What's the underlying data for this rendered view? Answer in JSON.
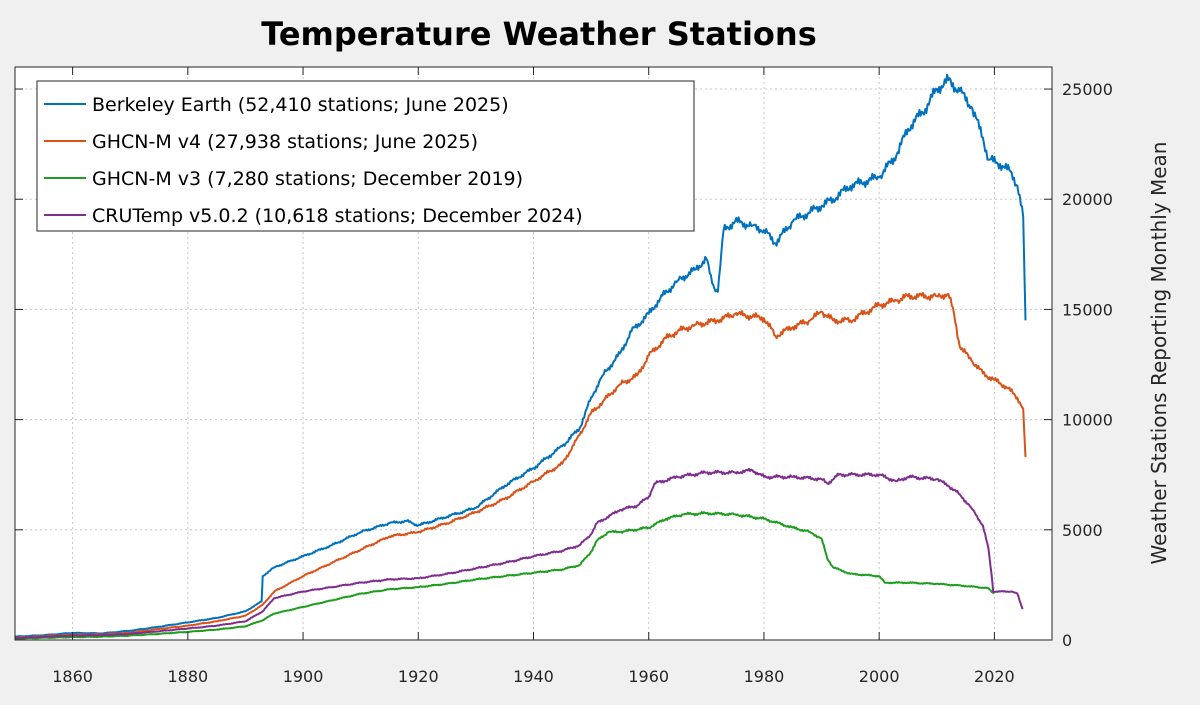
{
  "chart_data": {
    "type": "line",
    "title": "Temperature Weather Stations",
    "xlabel": "",
    "ylabel": "Weather Stations Reporting Monthly Mean",
    "xlim": [
      1850,
      2030
    ],
    "ylim": [
      0,
      26000
    ],
    "x_ticks": [
      1860,
      1880,
      1900,
      1920,
      1940,
      1960,
      1980,
      2000,
      2020
    ],
    "y_ticks": [
      0,
      5000,
      10000,
      15000,
      20000,
      25000
    ],
    "y_axis_side": "right",
    "grid": true,
    "legend_position": "top-left",
    "series": [
      {
        "name": "Berkeley Earth (52,410 stations; June 2025)",
        "color": "#0072BD",
        "points": [
          [
            1850,
            150
          ],
          [
            1855,
            220
          ],
          [
            1860,
            320
          ],
          [
            1865,
            300
          ],
          [
            1870,
            420
          ],
          [
            1875,
            600
          ],
          [
            1880,
            800
          ],
          [
            1885,
            1000
          ],
          [
            1890,
            1300
          ],
          [
            1892.8,
            1750
          ],
          [
            1893,
            2900
          ],
          [
            1895,
            3300
          ],
          [
            1900,
            3800
          ],
          [
            1905,
            4300
          ],
          [
            1910,
            4900
          ],
          [
            1915,
            5300
          ],
          [
            1918,
            5400
          ],
          [
            1920,
            5200
          ],
          [
            1925,
            5600
          ],
          [
            1930,
            6000
          ],
          [
            1935,
            7000
          ],
          [
            1940,
            7800
          ],
          [
            1945,
            8800
          ],
          [
            1948,
            9600
          ],
          [
            1950,
            11000
          ],
          [
            1952,
            12000
          ],
          [
            1955,
            13000
          ],
          [
            1957,
            14000
          ],
          [
            1960,
            14800
          ],
          [
            1962,
            15500
          ],
          [
            1965,
            16300
          ],
          [
            1968,
            16800
          ],
          [
            1970,
            17300
          ],
          [
            1971,
            16200
          ],
          [
            1972,
            15800
          ],
          [
            1973,
            18600
          ],
          [
            1975,
            19000
          ],
          [
            1978,
            18800
          ],
          [
            1980,
            18600
          ],
          [
            1982,
            18000
          ],
          [
            1985,
            19000
          ],
          [
            1990,
            19700
          ],
          [
            1992,
            20000
          ],
          [
            1995,
            20600
          ],
          [
            2000,
            21000
          ],
          [
            2003,
            22000
          ],
          [
            2005,
            23200
          ],
          [
            2008,
            24100
          ],
          [
            2010,
            25000
          ],
          [
            2012,
            25400
          ],
          [
            2014,
            24900
          ],
          [
            2016,
            24200
          ],
          [
            2018,
            22800
          ],
          [
            2019,
            21800
          ],
          [
            2021,
            21600
          ],
          [
            2023,
            21200
          ],
          [
            2024,
            20600
          ],
          [
            2025,
            19200
          ],
          [
            2025.4,
            14500
          ]
        ]
      },
      {
        "name": "GHCN-M v4 (27,938 stations; June 2025)",
        "color": "#D95319",
        "points": [
          [
            1850,
            100
          ],
          [
            1855,
            180
          ],
          [
            1860,
            240
          ],
          [
            1865,
            250
          ],
          [
            1870,
            330
          ],
          [
            1875,
            500
          ],
          [
            1880,
            650
          ],
          [
            1885,
            850
          ],
          [
            1890,
            1100
          ],
          [
            1893,
            1600
          ],
          [
            1895,
            2200
          ],
          [
            1900,
            2900
          ],
          [
            1905,
            3500
          ],
          [
            1910,
            4100
          ],
          [
            1915,
            4700
          ],
          [
            1920,
            4900
          ],
          [
            1925,
            5300
          ],
          [
            1930,
            5800
          ],
          [
            1935,
            6400
          ],
          [
            1940,
            7200
          ],
          [
            1945,
            8000
          ],
          [
            1948,
            9300
          ],
          [
            1950,
            10300
          ],
          [
            1952,
            10800
          ],
          [
            1955,
            11600
          ],
          [
            1958,
            12000
          ],
          [
            1960,
            12900
          ],
          [
            1963,
            13700
          ],
          [
            1965,
            14000
          ],
          [
            1968,
            14300
          ],
          [
            1970,
            14400
          ],
          [
            1972,
            14500
          ],
          [
            1975,
            14800
          ],
          [
            1980,
            14600
          ],
          [
            1982,
            13800
          ],
          [
            1985,
            14200
          ],
          [
            1988,
            14500
          ],
          [
            1990,
            14900
          ],
          [
            1992,
            14500
          ],
          [
            1995,
            14500
          ],
          [
            2000,
            15200
          ],
          [
            2003,
            15400
          ],
          [
            2005,
            15600
          ],
          [
            2010,
            15600
          ],
          [
            2012,
            15700
          ],
          [
            2013,
            14800
          ],
          [
            2014,
            13300
          ],
          [
            2016,
            12700
          ],
          [
            2018,
            12100
          ],
          [
            2020,
            11800
          ],
          [
            2022,
            11500
          ],
          [
            2024,
            11000
          ],
          [
            2025,
            10500
          ],
          [
            2025.4,
            8300
          ]
        ]
      },
      {
        "name": "GHCN-M v3 (7,280 stations; December 2019)",
        "color": "#1E9E1E",
        "points": [
          [
            1850,
            60
          ],
          [
            1855,
            100
          ],
          [
            1860,
            130
          ],
          [
            1865,
            150
          ],
          [
            1870,
            200
          ],
          [
            1875,
            280
          ],
          [
            1880,
            370
          ],
          [
            1885,
            470
          ],
          [
            1890,
            620
          ],
          [
            1893,
            900
          ],
          [
            1895,
            1200
          ],
          [
            1900,
            1500
          ],
          [
            1905,
            1800
          ],
          [
            1910,
            2100
          ],
          [
            1915,
            2300
          ],
          [
            1920,
            2400
          ],
          [
            1925,
            2550
          ],
          [
            1930,
            2750
          ],
          [
            1935,
            2900
          ],
          [
            1940,
            3050
          ],
          [
            1945,
            3200
          ],
          [
            1948,
            3400
          ],
          [
            1950,
            4000
          ],
          [
            1951,
            4500
          ],
          [
            1953,
            4900
          ],
          [
            1955,
            4900
          ],
          [
            1960,
            5100
          ],
          [
            1963,
            5500
          ],
          [
            1966,
            5700
          ],
          [
            1970,
            5750
          ],
          [
            1975,
            5700
          ],
          [
            1980,
            5500
          ],
          [
            1985,
            5100
          ],
          [
            1988,
            4900
          ],
          [
            1990,
            4600
          ],
          [
            1991,
            3700
          ],
          [
            1992,
            3300
          ],
          [
            1995,
            3000
          ],
          [
            2000,
            2900
          ],
          [
            2001,
            2600
          ],
          [
            2005,
            2600
          ],
          [
            2010,
            2550
          ],
          [
            2015,
            2450
          ],
          [
            2019,
            2350
          ],
          [
            2019.9,
            2100
          ]
        ]
      },
      {
        "name": "CRUTemp v5.0.2 (10,618 stations; December 2024)",
        "color": "#7E2F8E",
        "points": [
          [
            1850,
            90
          ],
          [
            1855,
            150
          ],
          [
            1860,
            200
          ],
          [
            1865,
            220
          ],
          [
            1870,
            280
          ],
          [
            1875,
            400
          ],
          [
            1880,
            520
          ],
          [
            1885,
            650
          ],
          [
            1890,
            850
          ],
          [
            1893,
            1300
          ],
          [
            1895,
            1900
          ],
          [
            1900,
            2200
          ],
          [
            1905,
            2400
          ],
          [
            1910,
            2600
          ],
          [
            1915,
            2750
          ],
          [
            1920,
            2800
          ],
          [
            1925,
            3000
          ],
          [
            1930,
            3250
          ],
          [
            1935,
            3500
          ],
          [
            1940,
            3800
          ],
          [
            1945,
            4050
          ],
          [
            1948,
            4300
          ],
          [
            1950,
            4800
          ],
          [
            1951,
            5300
          ],
          [
            1955,
            5900
          ],
          [
            1958,
            6100
          ],
          [
            1960,
            6500
          ],
          [
            1961,
            7100
          ],
          [
            1965,
            7400
          ],
          [
            1970,
            7600
          ],
          [
            1975,
            7600
          ],
          [
            1978,
            7700
          ],
          [
            1980,
            7400
          ],
          [
            1985,
            7400
          ],
          [
            1990,
            7300
          ],
          [
            1991,
            7100
          ],
          [
            1993,
            7500
          ],
          [
            1995,
            7500
          ],
          [
            2000,
            7500
          ],
          [
            2003,
            7200
          ],
          [
            2005,
            7400
          ],
          [
            2010,
            7300
          ],
          [
            2012,
            7000
          ],
          [
            2014,
            6600
          ],
          [
            2016,
            6000
          ],
          [
            2018,
            5200
          ],
          [
            2019,
            4100
          ],
          [
            2019.5,
            3000
          ],
          [
            2019.8,
            2200
          ],
          [
            2021,
            2200
          ],
          [
            2023,
            2200
          ],
          [
            2024,
            2100
          ],
          [
            2024.9,
            1400
          ]
        ]
      }
    ]
  }
}
